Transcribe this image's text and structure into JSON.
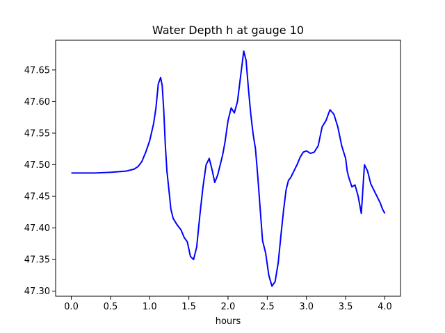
{
  "chart_data": {
    "type": "line",
    "title": "Water Depth h at gauge 10",
    "xlabel": "hours",
    "ylabel": "",
    "xlim": [
      -0.2,
      4.2
    ],
    "ylim": [
      47.292,
      47.697
    ],
    "xticks": [
      "0.0",
      "0.5",
      "1.0",
      "1.5",
      "2.0",
      "2.5",
      "3.0",
      "3.5",
      "4.0"
    ],
    "yticks": [
      "47.30",
      "47.35",
      "47.40",
      "47.45",
      "47.50",
      "47.55",
      "47.60",
      "47.65"
    ],
    "grid": false,
    "legend": "none",
    "series": [
      {
        "color": "#0000ff",
        "x": [
          0.0,
          0.3,
          0.5,
          0.7,
          0.8,
          0.85,
          0.9,
          0.95,
          1.0,
          1.05,
          1.08,
          1.11,
          1.14,
          1.16,
          1.18,
          1.2,
          1.22,
          1.25,
          1.27,
          1.3,
          1.35,
          1.4,
          1.44,
          1.48,
          1.52,
          1.56,
          1.6,
          1.64,
          1.68,
          1.72,
          1.76,
          1.8,
          1.83,
          1.85,
          1.87,
          1.9,
          1.93,
          1.96,
          2.0,
          2.04,
          2.08,
          2.12,
          2.16,
          2.2,
          2.23,
          2.26,
          2.29,
          2.32,
          2.35,
          2.38,
          2.41,
          2.44,
          2.48,
          2.52,
          2.56,
          2.6,
          2.64,
          2.68,
          2.71,
          2.74,
          2.77,
          2.8,
          2.84,
          2.88,
          2.92,
          2.96,
          3.0,
          3.05,
          3.1,
          3.15,
          3.2,
          3.25,
          3.3,
          3.35,
          3.4,
          3.45,
          3.5,
          3.52,
          3.54,
          3.58,
          3.62,
          3.66,
          3.7,
          3.74,
          3.78,
          3.82,
          3.86,
          3.9,
          3.94,
          3.97,
          4.0
        ],
        "y": [
          47.487,
          47.487,
          47.488,
          47.49,
          47.493,
          47.497,
          47.505,
          47.52,
          47.538,
          47.565,
          47.59,
          47.628,
          47.638,
          47.625,
          47.585,
          47.53,
          47.49,
          47.455,
          47.43,
          47.415,
          47.405,
          47.397,
          47.385,
          47.378,
          47.355,
          47.35,
          47.37,
          47.42,
          47.465,
          47.5,
          47.51,
          47.49,
          47.472,
          47.478,
          47.485,
          47.5,
          47.515,
          47.535,
          47.57,
          47.59,
          47.582,
          47.6,
          47.64,
          47.68,
          47.665,
          47.62,
          47.58,
          47.548,
          47.525,
          47.48,
          47.43,
          47.38,
          47.36,
          47.325,
          47.308,
          47.315,
          47.345,
          47.395,
          47.43,
          47.46,
          47.475,
          47.48,
          47.49,
          47.5,
          47.512,
          47.52,
          47.522,
          47.518,
          47.52,
          47.53,
          47.56,
          47.57,
          47.587,
          47.58,
          47.56,
          47.53,
          47.51,
          47.49,
          47.48,
          47.465,
          47.468,
          47.45,
          47.423,
          47.5,
          47.49,
          47.47,
          47.46,
          47.45,
          47.44,
          47.43,
          47.423
        ]
      }
    ]
  }
}
